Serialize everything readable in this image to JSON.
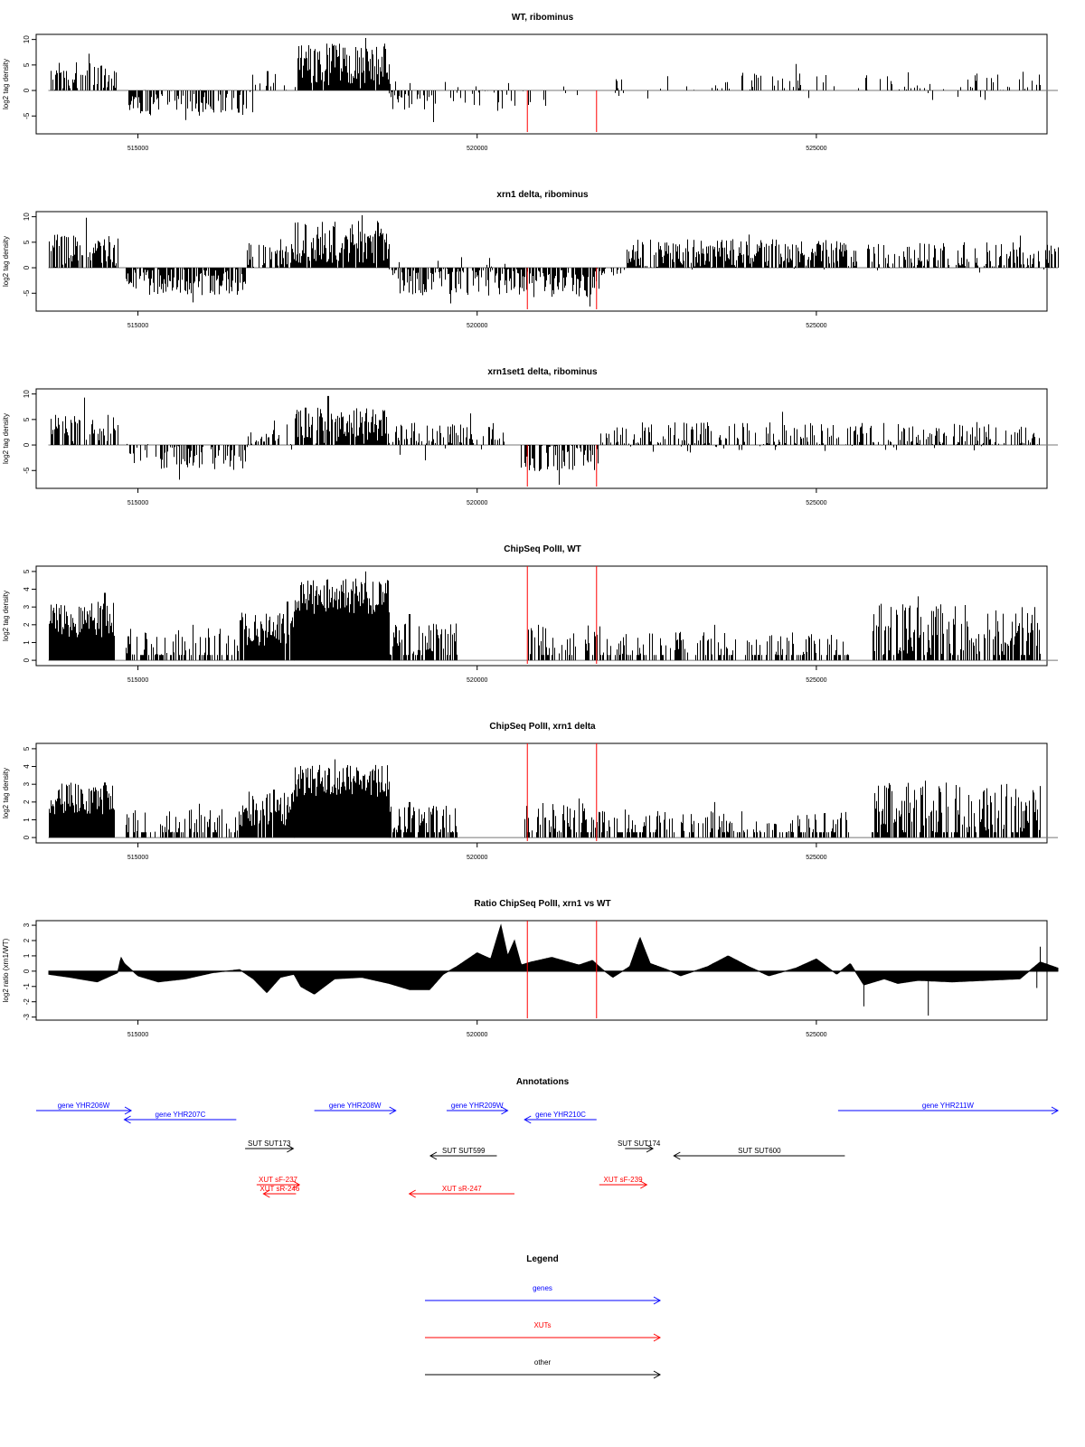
{
  "x_axis": {
    "ticks": [
      515000,
      520000,
      525000
    ],
    "tick_labels": [
      "515000",
      "520000",
      "525000"
    ],
    "range": [
      513500,
      528400
    ],
    "data_start": 513680,
    "data_end": 528560
  },
  "red_lines": [
    520740,
    521760
  ],
  "chart_data": [
    {
      "type": "bar",
      "title": "WT, ribominus",
      "ylabel": "log2 tag density",
      "ylim": [
        -8.5,
        11
      ],
      "yticks": [
        -5,
        0,
        5,
        10
      ],
      "ytick_labels": [
        "-5",
        "0",
        "5",
        "10"
      ],
      "red_lines_full": false,
      "segments": [
        {
          "start": 513680,
          "end": 514680,
          "mean": 2.8,
          "spread": 2.8,
          "density": 0.55,
          "peak": 7.2,
          "peak_at": 514270
        },
        {
          "start": 514860,
          "end": 516680,
          "mean": -2.4,
          "spread": 2.6,
          "density": 0.6,
          "peak": -5.8,
          "peak_at": 515700
        },
        {
          "start": 516680,
          "end": 517350,
          "mean": 0.2,
          "spread": 3.2,
          "density": 0.2,
          "peak": 3.8,
          "peak_at": 516900
        },
        {
          "start": 517350,
          "end": 518700,
          "mean": 4.8,
          "spread": 4.5,
          "density": 0.95,
          "peak": 10.3,
          "peak_at": 518350
        },
        {
          "start": 518700,
          "end": 520500,
          "mean": -0.8,
          "spread": 3.2,
          "density": 0.35,
          "peak": -6.2,
          "peak_at": 519350
        },
        {
          "start": 520500,
          "end": 522000,
          "mean": -1.0,
          "spread": 2.5,
          "density": 0.07,
          "peak": -3.0,
          "peak_at": 521000
        },
        {
          "start": 522000,
          "end": 523400,
          "mean": 0.3,
          "spread": 2.2,
          "density": 0.1,
          "peak": 2.8,
          "peak_at": 522800
        },
        {
          "start": 523400,
          "end": 528300,
          "mean": 0.8,
          "spread": 3.0,
          "density": 0.25,
          "peak": 5.2,
          "peak_at": 524700
        }
      ]
    },
    {
      "type": "bar",
      "title": "xrn1 delta, ribominus",
      "ylabel": "log2 tag density",
      "ylim": [
        -8.5,
        11
      ],
      "yticks": [
        -5,
        0,
        5,
        10
      ],
      "ytick_labels": [
        "-5",
        "0",
        "5",
        "10"
      ],
      "red_lines_full": false,
      "segments": [
        {
          "start": 513680,
          "end": 514700,
          "mean": 3.3,
          "spread": 3.3,
          "density": 0.8,
          "peak": 9.8,
          "peak_at": 514230
        },
        {
          "start": 514820,
          "end": 516600,
          "mean": -2.8,
          "spread": 2.6,
          "density": 0.8,
          "peak": -6.8,
          "peak_at": 515800
        },
        {
          "start": 516600,
          "end": 517300,
          "mean": 2.4,
          "spread": 2.5,
          "density": 0.75,
          "peak": 5.6,
          "peak_at": 517100
        },
        {
          "start": 517300,
          "end": 518700,
          "mean": 5.0,
          "spread": 4.2,
          "density": 0.95,
          "peak": 10.3,
          "peak_at": 518300
        },
        {
          "start": 518700,
          "end": 520400,
          "mean": -1.5,
          "spread": 4.0,
          "density": 0.7,
          "peak": -7.0,
          "peak_at": 519600
        },
        {
          "start": 520400,
          "end": 521800,
          "mean": -3.0,
          "spread": 2.8,
          "density": 0.8,
          "peak": -7.6,
          "peak_at": 521650
        },
        {
          "start": 521800,
          "end": 522200,
          "mean": -0.5,
          "spread": 1.0,
          "density": 0.3,
          "peak": -1.5,
          "peak_at": 522000
        },
        {
          "start": 522200,
          "end": 525400,
          "mean": 2.6,
          "spread": 3.0,
          "density": 0.85,
          "peak": 6.5,
          "peak_at": 524000
        },
        {
          "start": 525400,
          "end": 528560,
          "mean": 2.0,
          "spread": 3.0,
          "density": 0.6,
          "peak": 6.3,
          "peak_at": 528000
        }
      ]
    },
    {
      "type": "bar",
      "title": "xrn1set1 delta, ribominus",
      "ylabel": "log2 tag density",
      "ylim": [
        -8.5,
        11
      ],
      "yticks": [
        -5,
        0,
        5,
        10
      ],
      "ytick_labels": [
        "-5",
        "0",
        "5",
        "10"
      ],
      "red_lines_full": false,
      "segments": [
        {
          "start": 513680,
          "end": 514700,
          "mean": 2.8,
          "spread": 3.2,
          "density": 0.55,
          "peak": 9.3,
          "peak_at": 514200
        },
        {
          "start": 514820,
          "end": 516600,
          "mean": -2.3,
          "spread": 2.6,
          "density": 0.5,
          "peak": -6.8,
          "peak_at": 515600
        },
        {
          "start": 516600,
          "end": 517300,
          "mean": 1.2,
          "spread": 3.0,
          "density": 0.45,
          "peak": 4.8,
          "peak_at": 517000
        },
        {
          "start": 517300,
          "end": 518700,
          "mean": 3.8,
          "spread": 3.6,
          "density": 0.85,
          "peak": 9.6,
          "peak_at": 517800
        },
        {
          "start": 518700,
          "end": 520400,
          "mean": 0.6,
          "spread": 3.8,
          "density": 0.5,
          "peak": 6.2,
          "peak_at": 519900
        },
        {
          "start": 520600,
          "end": 521800,
          "mean": -2.4,
          "spread": 2.8,
          "density": 0.6,
          "peak": -7.8,
          "peak_at": 521200
        },
        {
          "start": 521800,
          "end": 528300,
          "mean": 1.5,
          "spread": 3.0,
          "density": 0.5,
          "peak": 6.5,
          "peak_at": 524500
        }
      ]
    },
    {
      "type": "bar",
      "title": "ChipSeq PolII, WT",
      "ylabel": "log2 tag density",
      "ylim": [
        -0.3,
        5.3
      ],
      "yticks": [
        0,
        1,
        2,
        3,
        4,
        5
      ],
      "ytick_labels": [
        "0",
        "1",
        "2",
        "3",
        "4",
        "5"
      ],
      "red_lines_full": true,
      "segments": [
        {
          "start": 513680,
          "end": 514640,
          "mean": 2.3,
          "spread": 1.0,
          "density": 1.0,
          "peak": 3.8,
          "peak_at": 514500
        },
        {
          "start": 514800,
          "end": 516500,
          "mean": 0.6,
          "spread": 1.2,
          "density": 0.55,
          "peak": 2.0,
          "peak_at": 515800
        },
        {
          "start": 516500,
          "end": 517300,
          "mean": 1.8,
          "spread": 1.0,
          "density": 0.9,
          "peak": 3.3,
          "peak_at": 517200
        },
        {
          "start": 517300,
          "end": 518700,
          "mean": 3.6,
          "spread": 1.0,
          "density": 1.0,
          "peak": 5.0,
          "peak_at": 518350
        },
        {
          "start": 518700,
          "end": 519700,
          "mean": 1.0,
          "spread": 1.2,
          "density": 0.75,
          "peak": 2.6,
          "peak_at": 519000
        },
        {
          "start": 520700,
          "end": 521800,
          "mean": 0.8,
          "spread": 1.2,
          "density": 0.55,
          "peak": 2.0,
          "peak_at": 520900
        },
        {
          "start": 521800,
          "end": 525500,
          "mean": 0.6,
          "spread": 1.0,
          "density": 0.5,
          "peak": 2.0,
          "peak_at": 523500
        },
        {
          "start": 525800,
          "end": 528300,
          "mean": 1.6,
          "spread": 1.6,
          "density": 0.65,
          "peak": 3.6,
          "peak_at": 526500
        }
      ]
    },
    {
      "type": "bar",
      "title": "ChipSeq PolII, xrn1 delta",
      "ylabel": "log2 tag density",
      "ylim": [
        -0.3,
        5.3
      ],
      "yticks": [
        0,
        1,
        2,
        3,
        4,
        5
      ],
      "ytick_labels": [
        "0",
        "1",
        "2",
        "3",
        "4",
        "5"
      ],
      "red_lines_full": true,
      "segments": [
        {
          "start": 513680,
          "end": 514640,
          "mean": 2.2,
          "spread": 0.9,
          "density": 1.0,
          "peak": 3.1,
          "peak_at": 514500
        },
        {
          "start": 514800,
          "end": 516500,
          "mean": 0.6,
          "spread": 1.0,
          "density": 0.6,
          "peak": 1.9,
          "peak_at": 515900
        },
        {
          "start": 516500,
          "end": 517300,
          "mean": 1.6,
          "spread": 1.0,
          "density": 0.9,
          "peak": 2.7,
          "peak_at": 517000
        },
        {
          "start": 517300,
          "end": 518700,
          "mean": 3.2,
          "spread": 0.9,
          "density": 1.0,
          "peak": 4.4,
          "peak_at": 517900
        },
        {
          "start": 518700,
          "end": 519700,
          "mean": 0.8,
          "spread": 1.0,
          "density": 0.75,
          "peak": 2.0,
          "peak_at": 519000
        },
        {
          "start": 520700,
          "end": 521800,
          "mean": 0.8,
          "spread": 1.2,
          "density": 0.55,
          "peak": 2.2,
          "peak_at": 521500
        },
        {
          "start": 521800,
          "end": 525500,
          "mean": 0.6,
          "spread": 1.0,
          "density": 0.5,
          "peak": 2.0,
          "peak_at": 523500
        },
        {
          "start": 525800,
          "end": 528300,
          "mean": 1.5,
          "spread": 1.6,
          "density": 0.65,
          "peak": 3.2,
          "peak_at": 526600
        }
      ]
    },
    {
      "type": "area",
      "title": "Ratio ChipSeq PolII, xrn1 vs WT",
      "ylabel": "log2 ratio (xrn1/WT)",
      "ylim": [
        -3.2,
        3.3
      ],
      "yticks": [
        -3,
        -2,
        -1,
        0,
        1,
        2,
        3
      ],
      "ytick_labels": [
        "-3",
        "-2",
        "-1",
        "0",
        "1",
        "2",
        "3"
      ],
      "red_lines_full": true,
      "profile": [
        [
          513680,
          -0.2
        ],
        [
          514000,
          -0.4
        ],
        [
          514400,
          -0.7
        ],
        [
          514700,
          -0.1
        ],
        [
          514750,
          0.9
        ],
        [
          514800,
          0.5
        ],
        [
          515000,
          -0.3
        ],
        [
          515300,
          -0.7
        ],
        [
          515700,
          -0.5
        ],
        [
          516100,
          -0.1
        ],
        [
          516500,
          0.1
        ],
        [
          516700,
          -0.5
        ],
        [
          516900,
          -1.4
        ],
        [
          517100,
          -0.4
        ],
        [
          517300,
          -0.2
        ],
        [
          517400,
          -1.0
        ],
        [
          517600,
          -1.5
        ],
        [
          517900,
          -0.5
        ],
        [
          518300,
          -0.4
        ],
        [
          518700,
          -0.8
        ],
        [
          519000,
          -1.2
        ],
        [
          519300,
          -1.2
        ],
        [
          519500,
          -0.2
        ],
        [
          519700,
          0.3
        ],
        [
          520000,
          1.2
        ],
        [
          520200,
          0.8
        ],
        [
          520350,
          3.0
        ],
        [
          520450,
          1.0
        ],
        [
          520550,
          2.0
        ],
        [
          520650,
          0.4
        ],
        [
          520800,
          0.6
        ],
        [
          521100,
          0.9
        ],
        [
          521500,
          0.4
        ],
        [
          521700,
          0.7
        ],
        [
          521850,
          0.1
        ],
        [
          522000,
          -0.4
        ],
        [
          522250,
          0.3
        ],
        [
          522400,
          2.2
        ],
        [
          522550,
          0.5
        ],
        [
          522800,
          0.1
        ],
        [
          523000,
          -0.3
        ],
        [
          523400,
          0.3
        ],
        [
          523700,
          1.0
        ],
        [
          524000,
          0.3
        ],
        [
          524300,
          -0.3
        ],
        [
          524700,
          0.2
        ],
        [
          525000,
          0.8
        ],
        [
          525300,
          -0.2
        ],
        [
          525500,
          0.5
        ],
        [
          525700,
          -0.9
        ],
        [
          526000,
          -0.5
        ],
        [
          526200,
          -0.8
        ],
        [
          526500,
          -0.6
        ],
        [
          527000,
          -0.7
        ],
        [
          527500,
          -0.6
        ],
        [
          528000,
          -0.5
        ],
        [
          528300,
          0.6
        ],
        [
          528560,
          0.2
        ]
      ],
      "spikes": [
        [
          525700,
          -2.3
        ],
        [
          526650,
          -2.9
        ],
        [
          528300,
          1.6
        ],
        [
          528250,
          -1.1
        ]
      ]
    }
  ],
  "annotations": {
    "title": "Annotations",
    "features": [
      {
        "label": "gene YHR206W",
        "type": "gene",
        "start": 513500,
        "end": 514900,
        "dir": 1,
        "row": 1
      },
      {
        "label": "gene YHR207C",
        "type": "gene",
        "start": 514800,
        "end": 516450,
        "dir": -1,
        "row": 2
      },
      {
        "label": "gene YHR208W",
        "type": "gene",
        "start": 517600,
        "end": 518800,
        "dir": 1,
        "row": 1
      },
      {
        "label": "gene YHR209W",
        "type": "gene",
        "start": 519550,
        "end": 520450,
        "dir": 1,
        "row": 1
      },
      {
        "label": "gene YHR210C",
        "type": "gene",
        "start": 520700,
        "end": 521760,
        "dir": -1,
        "row": 2
      },
      {
        "label": "gene YHR211W",
        "type": "gene",
        "start": 525320,
        "end": 528560,
        "dir": 1,
        "row": 1
      },
      {
        "label": "SUT SUT173",
        "type": "other",
        "start": 516580,
        "end": 517290,
        "dir": 1,
        "row": 3
      },
      {
        "label": "SUT SUT599",
        "type": "other",
        "start": 519310,
        "end": 520290,
        "dir": -1,
        "row": 4
      },
      {
        "label": "SUT SUT174",
        "type": "other",
        "start": 522180,
        "end": 522590,
        "dir": 1,
        "row": 3
      },
      {
        "label": "SUT SUT600",
        "type": "other",
        "start": 522900,
        "end": 525420,
        "dir": -1,
        "row": 4
      },
      {
        "label": "XUT sF-237",
        "type": "xut",
        "start": 516750,
        "end": 517380,
        "dir": 1,
        "row": 5
      },
      {
        "label": "XUT sR-246",
        "type": "xut",
        "start": 516850,
        "end": 517330,
        "dir": -1,
        "row": 6
      },
      {
        "label": "XUT sR-247",
        "type": "xut",
        "start": 519000,
        "end": 520550,
        "dir": -1,
        "row": 6
      },
      {
        "label": "XUT sF-239",
        "type": "xut",
        "start": 521800,
        "end": 522500,
        "dir": 1,
        "row": 5
      }
    ]
  },
  "legend": {
    "title": "Legend",
    "items": [
      {
        "label": "genes",
        "color": "#0000ff"
      },
      {
        "label": "XUTs",
        "color": "#ff0000"
      },
      {
        "label": "other",
        "color": "#000000"
      }
    ]
  },
  "colors": {
    "gene": "#0000ff",
    "xut": "#ff0000",
    "other": "#000000",
    "marker": "#ff0000",
    "bar": "#000000"
  }
}
